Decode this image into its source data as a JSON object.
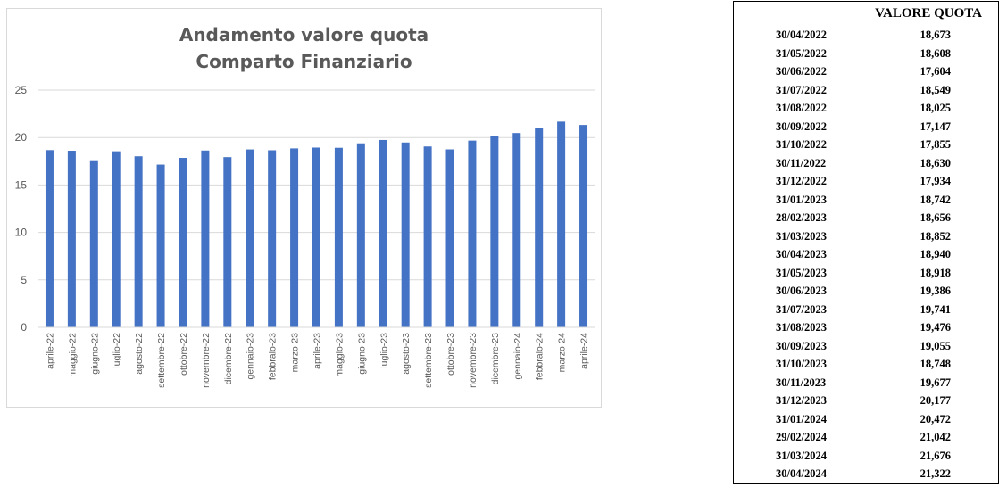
{
  "chart_data": {
    "type": "bar",
    "title_line1": "Andamento valore quota",
    "title_line2": "Comparto Finanziario",
    "categories": [
      "aprile-22",
      "maggio-22",
      "giugno-22",
      "luglio-22",
      "agosto-22",
      "settembre-22",
      "ottobre-22",
      "novembre-22",
      "dicembre-22",
      "gennaio-23",
      "febbraio-23",
      "marzo-23",
      "aprile-23",
      "maggio-23",
      "giugno-23",
      "luglio-23",
      "agosto-23",
      "settembre-23",
      "ottobre-23",
      "novembre-23",
      "dicembre-23",
      "gennaio-24",
      "febbraio-24",
      "marzo-24",
      "aprile-24"
    ],
    "values": [
      18.673,
      18.608,
      17.604,
      18.549,
      18.025,
      17.147,
      17.855,
      18.63,
      17.934,
      18.742,
      18.656,
      18.852,
      18.94,
      18.918,
      19.386,
      19.741,
      19.476,
      19.055,
      18.748,
      19.677,
      20.177,
      20.472,
      21.042,
      21.676,
      21.322
    ],
    "ylim": [
      0,
      25
    ],
    "yticks": [
      "0",
      "5",
      "10",
      "15",
      "20",
      "25"
    ],
    "grid": true,
    "bar_color": "#4472c4",
    "grid_color": "#d9d9d9",
    "axis_text_color": "#595959"
  },
  "table": {
    "value_header": "VALORE QUOTA",
    "rows": [
      {
        "date": "30/04/2022",
        "value": "18,673"
      },
      {
        "date": "31/05/2022",
        "value": "18,608"
      },
      {
        "date": "30/06/2022",
        "value": "17,604"
      },
      {
        "date": "31/07/2022",
        "value": "18,549"
      },
      {
        "date": "31/08/2022",
        "value": "18,025"
      },
      {
        "date": "30/09/2022",
        "value": "17,147"
      },
      {
        "date": "31/10/2022",
        "value": "17,855"
      },
      {
        "date": "30/11/2022",
        "value": "18,630"
      },
      {
        "date": "31/12/2022",
        "value": "17,934"
      },
      {
        "date": "31/01/2023",
        "value": "18,742"
      },
      {
        "date": "28/02/2023",
        "value": "18,656"
      },
      {
        "date": "31/03/2023",
        "value": "18,852"
      },
      {
        "date": "30/04/2023",
        "value": "18,940"
      },
      {
        "date": "31/05/2023",
        "value": "18,918"
      },
      {
        "date": "30/06/2023",
        "value": "19,386"
      },
      {
        "date": "31/07/2023",
        "value": "19,741"
      },
      {
        "date": "31/08/2023",
        "value": "19,476"
      },
      {
        "date": "30/09/2023",
        "value": "19,055"
      },
      {
        "date": "31/10/2023",
        "value": "18,748"
      },
      {
        "date": "30/11/2023",
        "value": "19,677"
      },
      {
        "date": "31/12/2023",
        "value": "20,177"
      },
      {
        "date": "31/01/2024",
        "value": "20,472"
      },
      {
        "date": "29/02/2024",
        "value": "21,042"
      },
      {
        "date": "31/03/2024",
        "value": "21,676"
      },
      {
        "date": "30/04/2024",
        "value": "21,322"
      }
    ]
  }
}
